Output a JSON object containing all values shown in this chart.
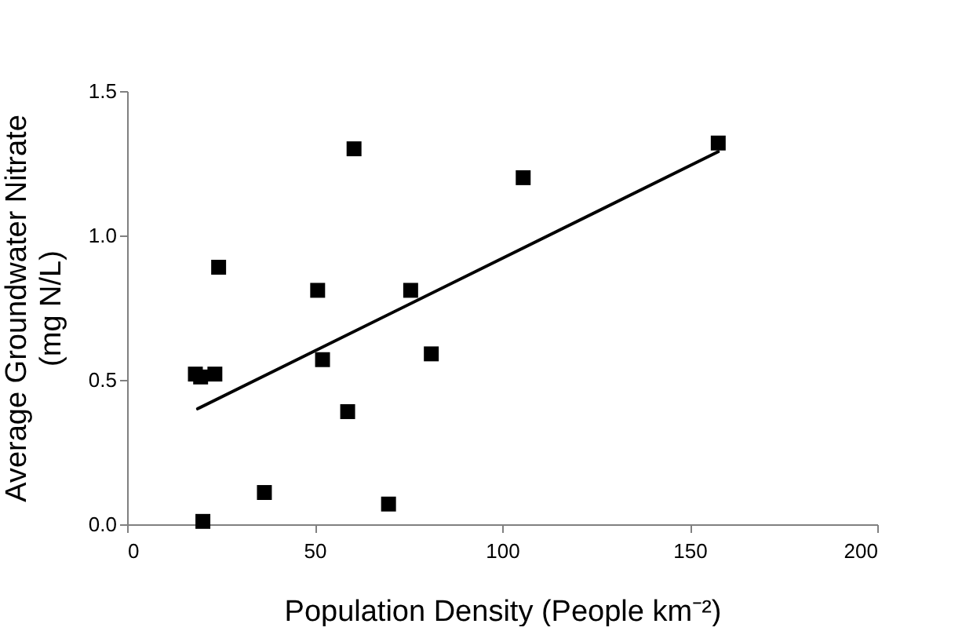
{
  "chart_data": {
    "type": "scatter",
    "xlabel": "Population Density (People km⁻²)",
    "ylabel": "Average Groundwater Nitrate\n(mg N/L)",
    "xlim": [
      0,
      200
    ],
    "xticks": [
      0,
      50,
      100,
      150,
      200
    ],
    "ylim": [
      0,
      1.5
    ],
    "yticks": [
      {
        "value": 0,
        "label": "0.0"
      },
      0.5,
      {
        "value": 1,
        "label": "1.0"
      },
      1.5
    ],
    "grid": false,
    "marker": "square",
    "series": [
      {
        "color": "#000000",
        "x": [
          18.2,
          19.6,
          23.4,
          24.4,
          20.2,
          36.6,
          50.8,
          52.1,
          58.8,
          60.5,
          69.7,
          75.6,
          81.1,
          105.6,
          157.6
        ],
        "values": [
          0.52,
          0.51,
          0.52,
          0.89,
          0.01,
          0.11,
          0.81,
          0.57,
          0.39,
          1.3,
          0.07,
          0.81,
          0.59,
          1.2,
          1.32
        ]
      },
      {
        "type": "line",
        "color": "#000000",
        "marker": "none",
        "line_style": "solid",
        "x": [
          18.8,
          157.6
        ],
        "values": [
          0.4,
          1.29
        ]
      }
    ]
  }
}
